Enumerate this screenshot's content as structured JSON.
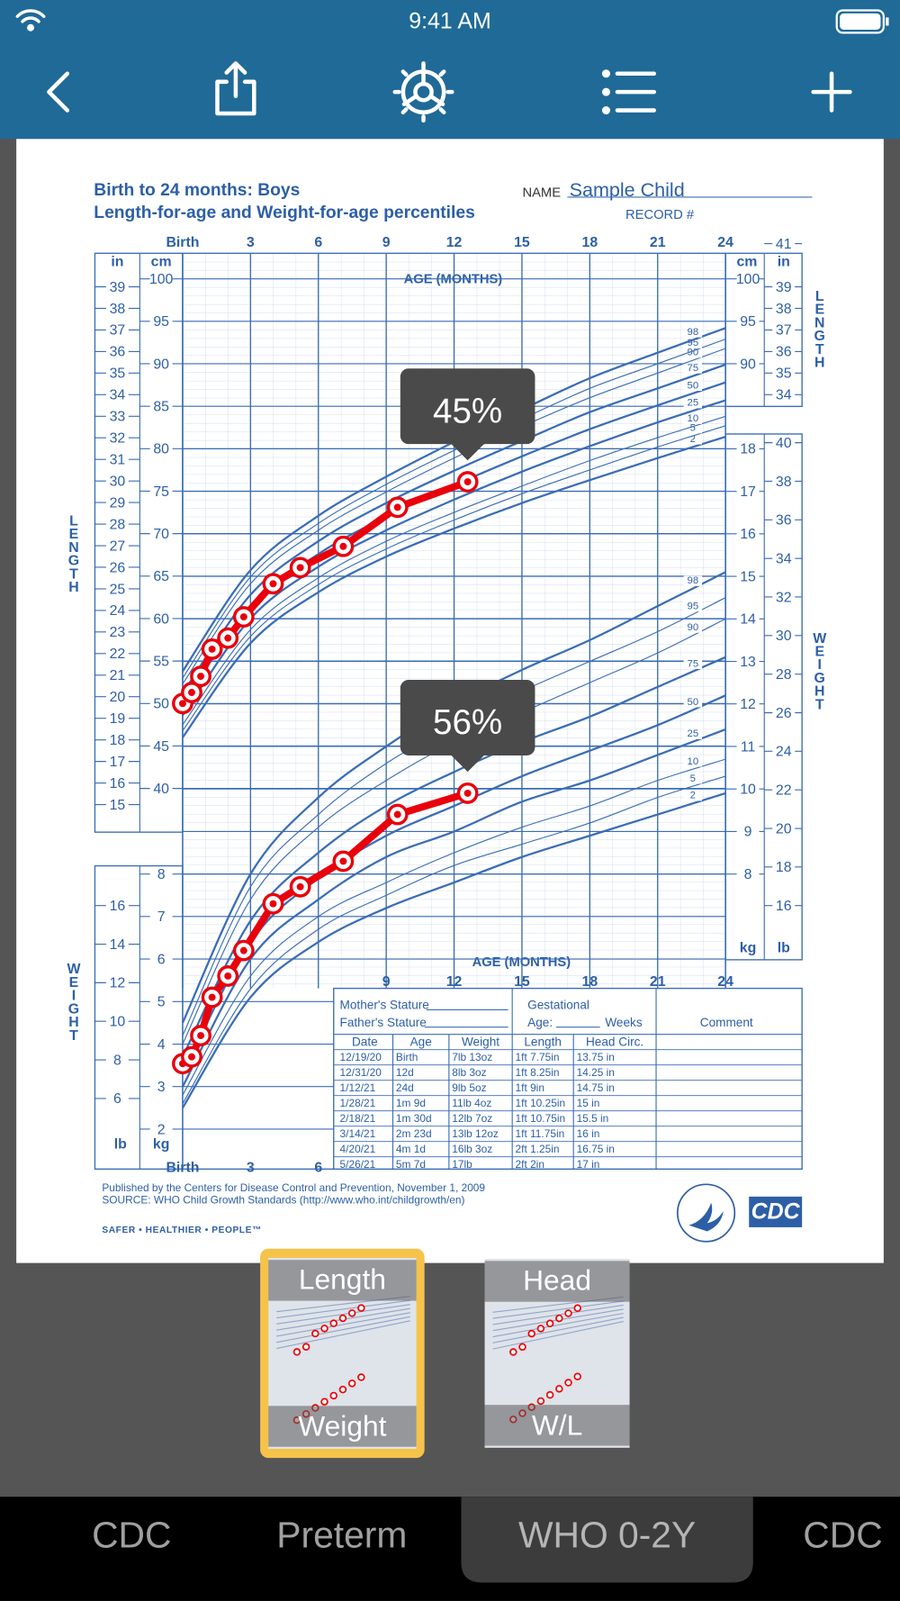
{
  "status_bar": {
    "time": "9:41 AM"
  },
  "chart": {
    "type": "line",
    "title": "Birth to 24 months: Boys",
    "subtitle": "Length-for-age and Weight-for-age percentiles",
    "name_label": "NAME",
    "name": "Sample Child",
    "record_label": "RECORD #",
    "age_label": "AGE (MONTHS)",
    "length_label": "LENGTH",
    "weight_label": "WEIGHT",
    "in_unit": "in",
    "cm_unit": "cm",
    "kg_unit": "kg",
    "lb_unit": "lb",
    "xticks": [
      {
        "value": 0,
        "label": "Birth"
      },
      3,
      6,
      9,
      12,
      15,
      18,
      21,
      24
    ],
    "xlim": [
      0,
      24
    ],
    "cm_ticks_left": [
      40,
      45,
      50,
      55,
      60,
      65,
      70,
      75,
      80,
      85,
      90,
      95,
      100
    ],
    "cm_ticks_right": [
      90,
      95,
      100
    ],
    "in_ticks_left": [
      15,
      16,
      17,
      18,
      19,
      20,
      21,
      22,
      23,
      24,
      25,
      26,
      27,
      28,
      29,
      30,
      31,
      32,
      33,
      34,
      35,
      36,
      37,
      38,
      39
    ],
    "in_ticks_right": [
      34,
      35,
      36,
      37,
      38,
      39,
      41
    ],
    "kg_ticks_left": [
      2,
      3,
      4,
      5,
      6,
      7,
      8
    ],
    "kg_ticks_right": [
      8,
      9,
      10,
      11,
      12,
      13,
      14,
      15,
      16,
      17,
      18
    ],
    "lb_ticks_left": [
      6,
      8,
      10,
      12,
      14,
      16
    ],
    "lb_ticks_right": [
      16,
      18,
      20,
      22,
      24,
      26,
      28,
      30,
      32,
      34,
      36,
      38,
      40
    ],
    "length_curves": [
      {
        "name": "2",
        "values": [
          46.0,
          57.1,
          63.1,
          67.3,
          70.6,
          73.6,
          76.3,
          78.9,
          81.4
        ]
      },
      {
        "name": "5",
        "values": [
          46.8,
          57.9,
          64.0,
          68.2,
          71.6,
          74.7,
          77.5,
          80.2,
          82.7
        ]
      },
      {
        "name": "10",
        "values": [
          47.5,
          58.7,
          64.8,
          69.1,
          72.5,
          75.6,
          78.6,
          81.3,
          83.8
        ]
      },
      {
        "name": "25",
        "values": [
          48.6,
          60.0,
          66.1,
          70.4,
          74.0,
          77.3,
          80.3,
          83.1,
          85.7
        ]
      },
      {
        "name": "50",
        "values": [
          49.9,
          61.4,
          67.6,
          72.0,
          75.7,
          79.1,
          82.3,
          85.1,
          87.8
        ]
      },
      {
        "name": "75",
        "values": [
          51.2,
          62.8,
          69.1,
          73.6,
          77.4,
          80.9,
          84.3,
          87.1,
          89.9
        ]
      },
      {
        "name": "90",
        "values": [
          52.3,
          64.1,
          70.4,
          74.9,
          78.9,
          82.6,
          86.0,
          88.9,
          91.8
        ]
      },
      {
        "name": "95",
        "values": [
          53.0,
          64.9,
          71.2,
          75.8,
          79.8,
          83.5,
          87.1,
          90.0,
          92.9
        ]
      },
      {
        "name": "98",
        "values": [
          53.8,
          65.7,
          72.1,
          76.7,
          80.8,
          84.6,
          88.3,
          91.3,
          94.2
        ]
      }
    ],
    "weight_curves": [
      {
        "name": "2",
        "values": [
          2.5,
          5.1,
          6.4,
          7.2,
          7.8,
          8.4,
          8.9,
          9.4,
          9.9
        ]
      },
      {
        "name": "5",
        "values": [
          2.6,
          5.3,
          6.7,
          7.5,
          8.2,
          8.7,
          9.2,
          9.8,
          10.3
        ]
      },
      {
        "name": "10",
        "values": [
          2.8,
          5.6,
          7.0,
          7.8,
          8.5,
          9.1,
          9.6,
          10.2,
          10.7
        ]
      },
      {
        "name": "25",
        "values": [
          3.0,
          6.0,
          7.4,
          8.4,
          9.0,
          9.7,
          10.2,
          10.8,
          11.4
        ]
      },
      {
        "name": "50",
        "values": [
          3.3,
          6.4,
          7.9,
          8.9,
          9.6,
          10.3,
          10.9,
          11.5,
          12.2
        ]
      },
      {
        "name": "75",
        "values": [
          3.7,
          6.9,
          8.5,
          9.6,
          10.4,
          11.1,
          11.7,
          12.4,
          13.1
        ]
      },
      {
        "name": "90",
        "values": [
          4.0,
          7.4,
          9.1,
          10.2,
          11.1,
          11.8,
          12.5,
          13.2,
          14.0
        ]
      },
      {
        "name": "95",
        "values": [
          4.2,
          7.7,
          9.4,
          10.6,
          11.5,
          12.3,
          13.0,
          13.7,
          14.5
        ]
      },
      {
        "name": "98",
        "values": [
          4.5,
          8.0,
          9.8,
          11.0,
          12.0,
          12.8,
          13.5,
          14.3,
          15.1
        ]
      }
    ],
    "length_points": {
      "color": "#e8000b",
      "x": [
        0,
        0.4,
        0.8,
        1.3,
        2.0,
        2.7,
        4.0,
        5.2,
        7.1,
        9.5,
        12.6
      ],
      "values": [
        50.0,
        51.3,
        53.2,
        56.4,
        57.7,
        60.2,
        64.1,
        66.0,
        68.5,
        73.1,
        76.1
      ]
    },
    "weight_points": {
      "color": "#e8000b",
      "x": [
        0,
        0.4,
        0.8,
        1.3,
        2.0,
        2.7,
        4.0,
        5.2,
        7.1,
        9.5,
        12.6
      ],
      "values": [
        3.54,
        3.7,
        4.2,
        5.1,
        5.6,
        6.2,
        7.3,
        7.7,
        8.3,
        9.4,
        9.9
      ]
    },
    "length_percentile": "45%",
    "weight_percentile": "56%"
  },
  "table": {
    "mother": "Mother's Stature",
    "father": "Father's Stature",
    "gestational": "Gestational",
    "age": "Age:",
    "weeks": "Weeks",
    "comment": "Comment",
    "columns": [
      "Date",
      "Age",
      "Weight",
      "Length",
      "Head Circ."
    ],
    "rows": [
      [
        "12/19/20",
        "Birth",
        "7lb 13oz",
        "1ft 7.75in",
        "13.75 in"
      ],
      [
        "12/31/20",
        "12d",
        "8lb 3oz",
        "1ft 8.25in",
        "14.25 in"
      ],
      [
        "1/12/21",
        "24d",
        "9lb 5oz",
        "1ft 9in",
        "14.75 in"
      ],
      [
        "1/28/21",
        "1m 9d",
        "11lb 4oz",
        "1ft 10.25in",
        "15 in"
      ],
      [
        "2/18/21",
        "1m 30d",
        "12lb 7oz",
        "1ft 10.75in",
        "15.5 in"
      ],
      [
        "3/14/21",
        "2m 23d",
        "13lb 12oz",
        "1ft 11.75in",
        "16 in"
      ],
      [
        "4/20/21",
        "4m 1d",
        "16lb 3oz",
        "2ft 1.25in",
        "16.75 in"
      ],
      [
        "5/26/21",
        "5m 7d",
        "17lb",
        "2ft 2in",
        "17 in"
      ]
    ]
  },
  "footer": {
    "published": "Published by the Centers for Disease Control and Prevention, November 1, 2009",
    "source": "SOURCE:  WHO Child Growth Standards (http://www.who.int/childgrowth/en)",
    "slogan": "SAFER • HEALTHIER • PEOPLE™",
    "logo": "CDC"
  },
  "thumbnails": [
    {
      "top": "Length",
      "bottom": "Weight"
    },
    {
      "top": "Head",
      "bottom": "W/L"
    }
  ],
  "tabs": [
    "CDC",
    "Preterm",
    "WHO 0-2Y",
    "CDC"
  ]
}
